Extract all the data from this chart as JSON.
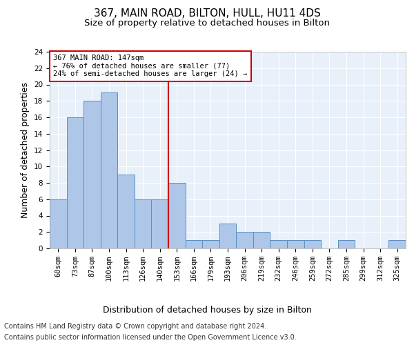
{
  "title": "367, MAIN ROAD, BILTON, HULL, HU11 4DS",
  "subtitle": "Size of property relative to detached houses in Bilton",
  "xlabel": "Distribution of detached houses by size in Bilton",
  "ylabel": "Number of detached properties",
  "categories": [
    "60sqm",
    "73sqm",
    "87sqm",
    "100sqm",
    "113sqm",
    "126sqm",
    "140sqm",
    "153sqm",
    "166sqm",
    "179sqm",
    "193sqm",
    "206sqm",
    "219sqm",
    "232sqm",
    "246sqm",
    "259sqm",
    "272sqm",
    "285sqm",
    "299sqm",
    "312sqm",
    "325sqm"
  ],
  "values": [
    6,
    16,
    18,
    19,
    9,
    6,
    6,
    8,
    1,
    1,
    3,
    2,
    2,
    1,
    1,
    1,
    0,
    1,
    0,
    0,
    1
  ],
  "bar_color": "#aec6e8",
  "bar_edge_color": "#5a8fc2",
  "vline_x": 6.5,
  "vline_color": "#cc0000",
  "annotation_text": "367 MAIN ROAD: 147sqm\n← 76% of detached houses are smaller (77)\n24% of semi-detached houses are larger (24) →",
  "annotation_box_color": "#ffffff",
  "annotation_box_edge": "#cc0000",
  "ylim": [
    0,
    24
  ],
  "yticks": [
    0,
    2,
    4,
    6,
    8,
    10,
    12,
    14,
    16,
    18,
    20,
    22,
    24
  ],
  "footer_line1": "Contains HM Land Registry data © Crown copyright and database right 2024.",
  "footer_line2": "Contains public sector information licensed under the Open Government Licence v3.0.",
  "plot_background": "#e8f0fa",
  "fig_background": "#ffffff",
  "grid_color": "#ffffff",
  "title_fontsize": 11,
  "subtitle_fontsize": 9.5,
  "axis_label_fontsize": 9,
  "tick_fontsize": 7.5,
  "footer_fontsize": 7
}
